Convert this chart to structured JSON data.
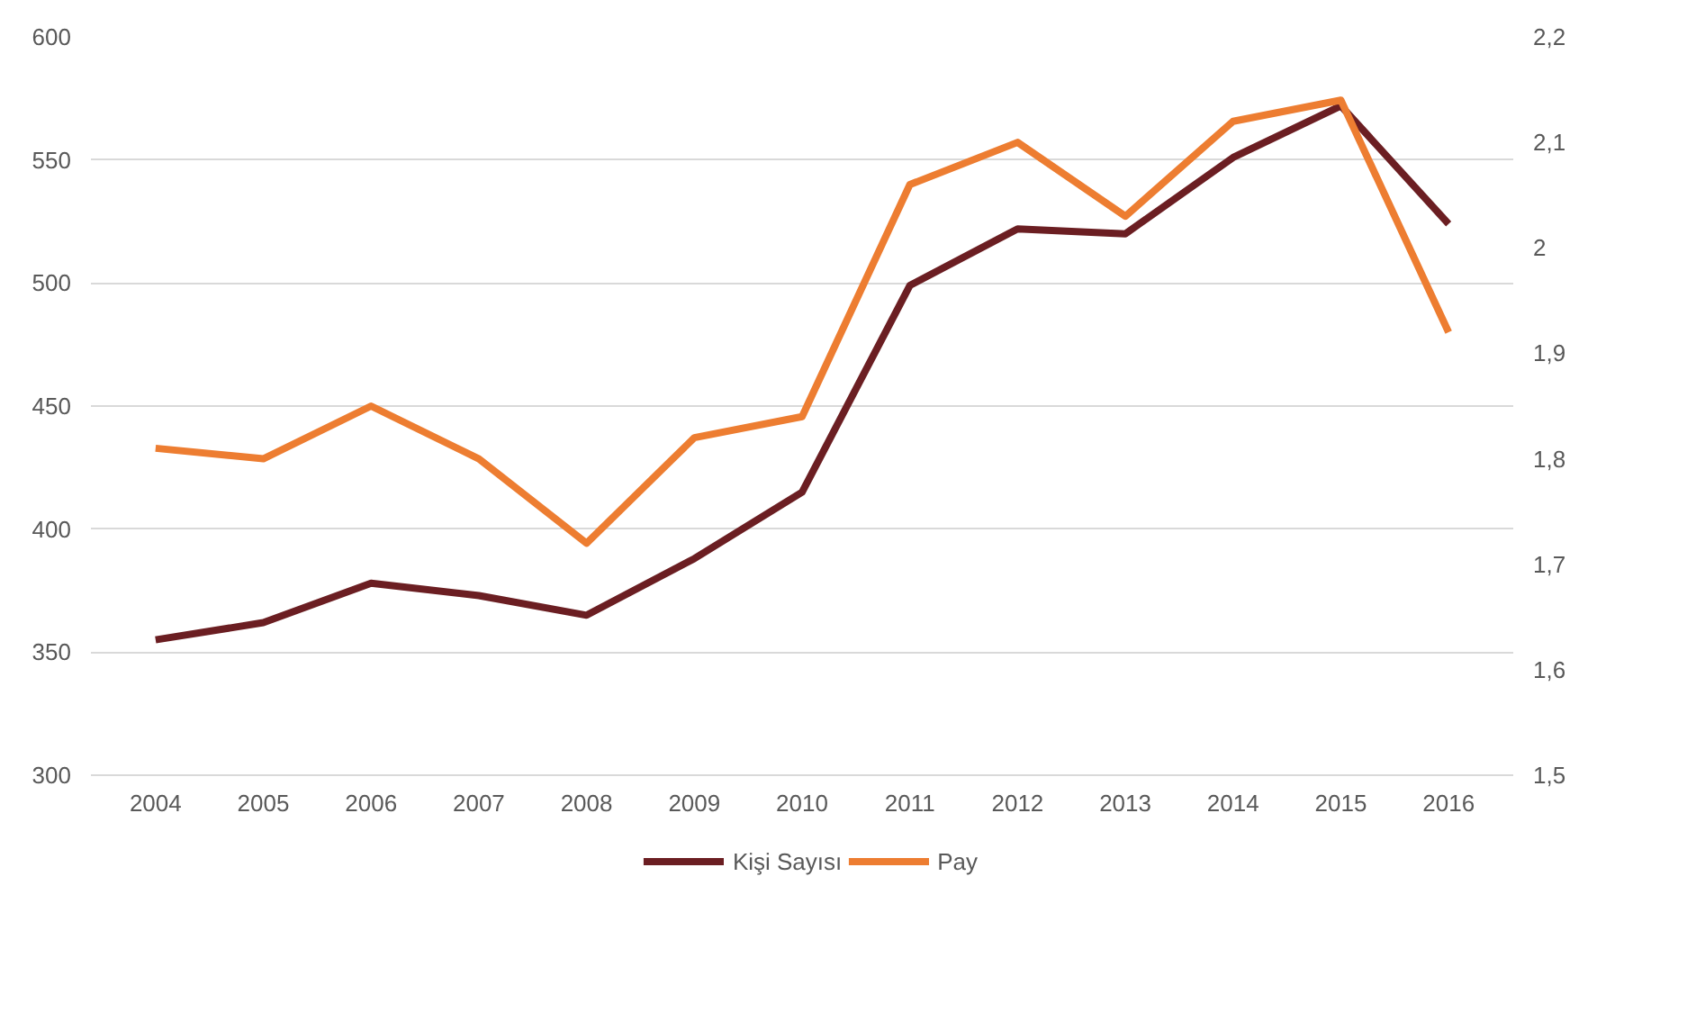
{
  "chart_data": {
    "type": "line",
    "categories": [
      "2004",
      "2005",
      "2006",
      "2007",
      "2008",
      "2009",
      "2010",
      "2011",
      "2012",
      "2013",
      "2014",
      "2015",
      "2016"
    ],
    "series": [
      {
        "name": "Kişi Sayısı",
        "color": "#6b1e22",
        "values": [
          355,
          362,
          378,
          373,
          365,
          388,
          415,
          499,
          522,
          520,
          551,
          572,
          524
        ]
      },
      {
        "name": "Pay",
        "color": "#ed7d31",
        "axis": "y2",
        "values": [
          1.81,
          1.8,
          1.85,
          1.8,
          1.72,
          1.82,
          1.84,
          2.06,
          2.1,
          2.03,
          2.12,
          2.14,
          1.92
        ]
      }
    ],
    "ylim": [
      300,
      600
    ],
    "yticks": [
      300,
      350,
      400,
      450,
      500,
      550,
      600
    ],
    "y2lim": [
      1.5,
      2.2
    ],
    "y2ticks": [
      {
        "value": 1.5,
        "label": "1,5"
      },
      {
        "value": 1.6,
        "label": "1,6"
      },
      {
        "value": 1.7,
        "label": "1,7"
      },
      {
        "value": 1.8,
        "label": "1,8"
      },
      {
        "value": 1.9,
        "label": "1,9"
      },
      {
        "value": 2,
        "label": "2"
      },
      {
        "value": 2.1,
        "label": "2,1"
      },
      {
        "value": 2.2,
        "label": "2,2"
      }
    ],
    "grid": "y",
    "legend": "bottom",
    "line_style": "solid",
    "marker": "none"
  }
}
